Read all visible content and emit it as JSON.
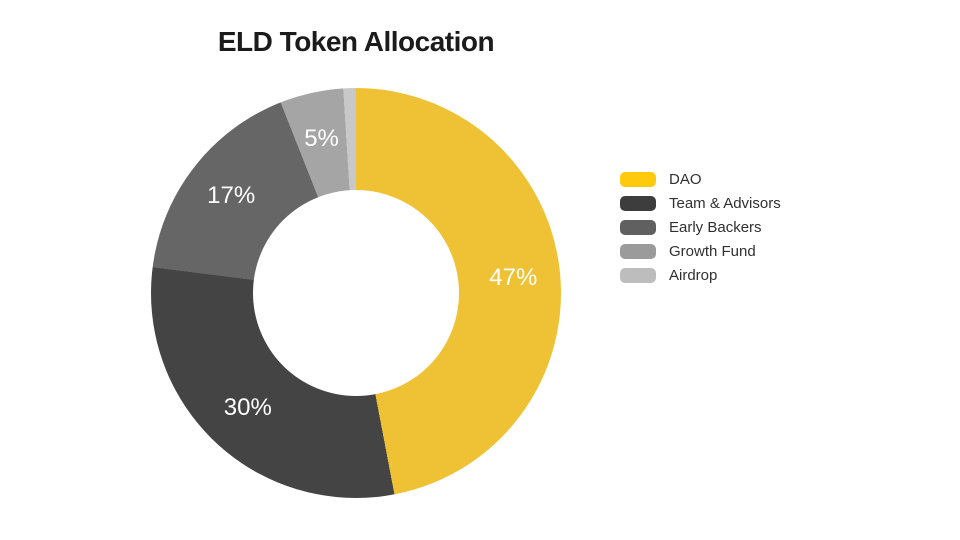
{
  "page": {
    "background_color": "#FFFFFF"
  },
  "chart_data": {
    "type": "pie",
    "variant": "donut",
    "title": "ELD Token Allocation",
    "title_color": "#1B1B1B",
    "legend_position": "right",
    "donut_hole_ratio": 0.5,
    "start_angle_deg": 0,
    "direction": "clockwise",
    "data_label_color": "#FFFFFF",
    "legend_text_color": "#303030",
    "series": [
      {
        "label": "DAO",
        "value": 47,
        "data_label": "47%",
        "color": "#EEC234",
        "legend_color": "#FFC90D"
      },
      {
        "label": "Team & Advisors",
        "value": 30,
        "data_label": "30%",
        "color": "#444444",
        "legend_color": "#3D3D3D"
      },
      {
        "label": "Early Backers",
        "value": 17,
        "data_label": "17%",
        "color": "#666666",
        "legend_color": "#606060"
      },
      {
        "label": "Growth Fund",
        "value": 5,
        "data_label": "5%",
        "color": "#A5A5A5",
        "legend_color": "#9B9B9B"
      },
      {
        "label": "Airdrop",
        "value": 1,
        "data_label": "",
        "color": "#C8C8C8",
        "legend_color": "#BDBDBD"
      }
    ]
  }
}
